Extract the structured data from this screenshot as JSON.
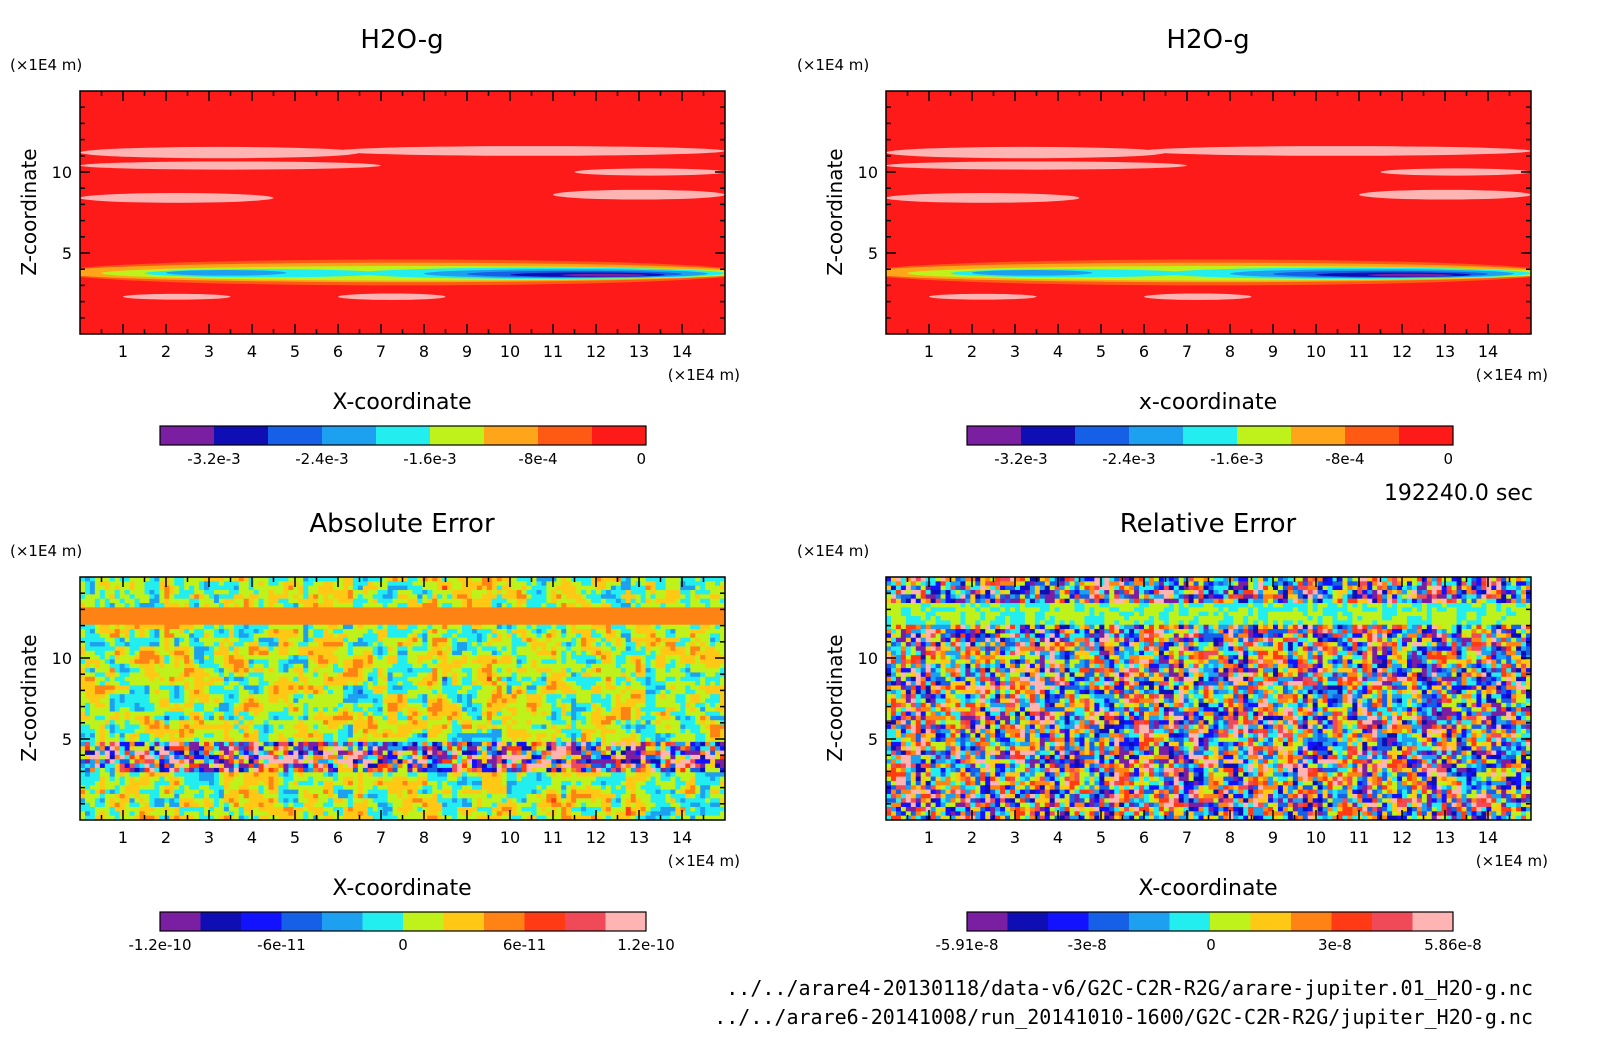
{
  "chart_data": [
    {
      "type": "heatmap",
      "title": "H2O-g",
      "xlabel": "X-coordinate",
      "ylabel": "Z-coordinate",
      "x_unit": "(×1E4 m)",
      "y_unit": "(×1E4 m)",
      "xlim": [
        0,
        15
      ],
      "ylim": [
        0,
        15
      ],
      "xticks": [
        "1",
        "2",
        "3",
        "4",
        "5",
        "6",
        "7",
        "8",
        "9",
        "10",
        "11",
        "12",
        "13",
        "14"
      ],
      "yticks": [
        "5",
        "10"
      ],
      "field": "h2o",
      "colorbar": {
        "colors": [
          "#7b1fa2",
          "#0e0eb4",
          "#1560e6",
          "#1ea0f0",
          "#22eef0",
          "#bff21a",
          "#ffa51a",
          "#ff5a14",
          "#ff1a1a"
        ],
        "labels": [
          "-3.2e-3",
          "-2.4e-3",
          "-1.6e-3",
          "-8e-4",
          "0"
        ],
        "vmin": -0.0036,
        "vmax": 0
      }
    },
    {
      "type": "heatmap",
      "title": "H2O-g",
      "xlabel": "x-coordinate",
      "ylabel": "Z-coordinate",
      "x_unit": "(×1E4 m)",
      "y_unit": "(×1E4 m)",
      "xlim": [
        0,
        15
      ],
      "ylim": [
        0,
        15
      ],
      "xticks": [
        "1",
        "2",
        "3",
        "4",
        "5",
        "6",
        "7",
        "8",
        "9",
        "10",
        "11",
        "12",
        "13",
        "14"
      ],
      "yticks": [
        "5",
        "10"
      ],
      "field": "h2o",
      "colorbar": {
        "colors": [
          "#7b1fa2",
          "#0e0eb4",
          "#1560e6",
          "#1ea0f0",
          "#22eef0",
          "#bff21a",
          "#ffa51a",
          "#ff5a14",
          "#ff1a1a"
        ],
        "labels": [
          "-3.2e-3",
          "-2.4e-3",
          "-1.6e-3",
          "-8e-4",
          "0"
        ],
        "vmin": -0.0036,
        "vmax": 0
      }
    },
    {
      "type": "heatmap",
      "title": "Absolute Error",
      "xlabel": "X-coordinate",
      "ylabel": "Z-coordinate",
      "x_unit": "(×1E4 m)",
      "y_unit": "(×1E4 m)",
      "xlim": [
        0,
        15
      ],
      "ylim": [
        0,
        15
      ],
      "xticks": [
        "1",
        "2",
        "3",
        "4",
        "5",
        "6",
        "7",
        "8",
        "9",
        "10",
        "11",
        "12",
        "13",
        "14"
      ],
      "yticks": [
        "5",
        "10"
      ],
      "field": "abs",
      "colorbar": {
        "colors": [
          "#7b1fa2",
          "#0e0eb4",
          "#1212ff",
          "#1560e6",
          "#1ea0f0",
          "#22eef0",
          "#bff21a",
          "#ffc814",
          "#ff8214",
          "#ff3a14",
          "#f04a58",
          "#ffb4b4"
        ],
        "labels": [
          "-1.2e-10",
          "-6e-11",
          "0",
          "6e-11",
          "1.2e-10"
        ],
        "vmin": -1.2e-10,
        "vmax": 1.2e-10
      }
    },
    {
      "type": "heatmap",
      "title": "Relative Error",
      "xlabel": "X-coordinate",
      "ylabel": "Z-coordinate",
      "x_unit": "(×1E4 m)",
      "y_unit": "(×1E4 m)",
      "xlim": [
        0,
        15
      ],
      "ylim": [
        0,
        15
      ],
      "xticks": [
        "1",
        "2",
        "3",
        "4",
        "5",
        "6",
        "7",
        "8",
        "9",
        "10",
        "11",
        "12",
        "13",
        "14"
      ],
      "yticks": [
        "5",
        "10"
      ],
      "field": "rel",
      "colorbar": {
        "colors": [
          "#7b1fa2",
          "#0e0eb4",
          "#1212ff",
          "#1560e6",
          "#1ea0f0",
          "#22eef0",
          "#bff21a",
          "#ffc814",
          "#ff8214",
          "#ff3a14",
          "#f04a58",
          "#ffb4b4"
        ],
        "labels": [
          "-5.91e-8",
          "-3e-8",
          "0",
          "3e-8",
          "5.86e-8"
        ],
        "vmin": -5.91e-08,
        "vmax": 5.86e-08
      }
    }
  ],
  "time_label": "192240.0 sec",
  "file_paths": [
    "../../arare4-20130118/data-v6/G2C-C2R-R2G/arare-jupiter.01_H2O-g.nc",
    "../../arare6-20141008/run_20141010-1600/G2C-C2R-R2G/jupiter_H2O-g.nc"
  ]
}
